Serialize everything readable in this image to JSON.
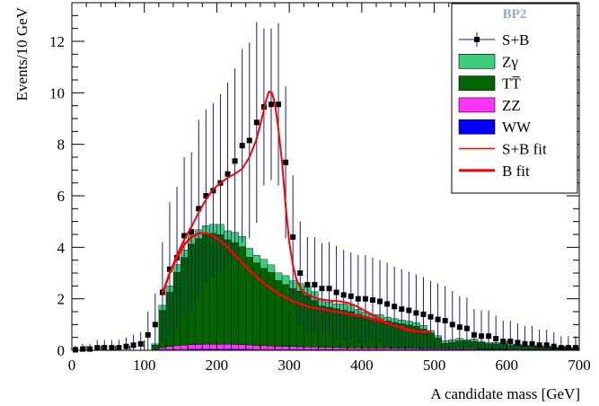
{
  "chart_data": {
    "type": "histogram",
    "title": "",
    "xlabel": "A candidate mass [GeV]",
    "ylabel": "Events/10 GeV",
    "xlim": [
      0,
      700
    ],
    "ylim": [
      0,
      13.5
    ],
    "x_ticks": [
      0,
      100,
      200,
      300,
      400,
      500,
      600,
      700
    ],
    "y_ticks": [
      0,
      2,
      4,
      6,
      8,
      10,
      12
    ],
    "bin_width": 10,
    "bin_edges_start": 0,
    "legend": {
      "title": "BP2",
      "title_color": "#8ea9db",
      "position": "top-right",
      "entries": [
        {
          "label": "S+B",
          "style": "marker-errorbar",
          "color": "#000000",
          "line_color": "#1c1c8c"
        },
        {
          "label": "Zγ",
          "style": "fill",
          "color": "#3ccc7c"
        },
        {
          "label": "TT̅",
          "style": "fill",
          "color": "#006400"
        },
        {
          "label": "ZZ",
          "style": "fill",
          "color": "#ff33ff"
        },
        {
          "label": "WW",
          "style": "fill",
          "color": "#0000ff"
        },
        {
          "label": "S+B fit",
          "style": "line",
          "color": "#ff0000"
        },
        {
          "label": "B fit",
          "style": "line-thick",
          "color": "#ff0000"
        }
      ]
    },
    "series": [
      {
        "name": "WW",
        "color": "#0000ff",
        "values": [
          0,
          0,
          0,
          0,
          0,
          0,
          0,
          0,
          0,
          0,
          0,
          0,
          0.02,
          0.03,
          0.03,
          0.03,
          0.04,
          0.04,
          0.04,
          0.04,
          0.04,
          0.04,
          0.04,
          0.04,
          0.04,
          0.03,
          0.03,
          0.03,
          0.03,
          0.03,
          0.03,
          0.03,
          0.03,
          0.03,
          0.03,
          0.03,
          0.02,
          0.02,
          0.02,
          0.02,
          0.02,
          0.02,
          0.02,
          0.02,
          0.02,
          0.02,
          0.02,
          0.02,
          0.02,
          0.02,
          0.02,
          0.02,
          0.02,
          0.02,
          0.02,
          0.02,
          0.02,
          0.02,
          0.02,
          0.02,
          0.01,
          0.01,
          0.01,
          0.01,
          0.01,
          0.01,
          0.01,
          0.01,
          0.01,
          0.01
        ]
      },
      {
        "name": "ZZ",
        "color": "#ff33ff",
        "values": [
          0,
          0,
          0,
          0,
          0,
          0,
          0,
          0,
          0,
          0,
          0,
          0,
          0.08,
          0.12,
          0.15,
          0.17,
          0.18,
          0.19,
          0.2,
          0.2,
          0.2,
          0.2,
          0.19,
          0.18,
          0.17,
          0.16,
          0.15,
          0.14,
          0.13,
          0.12,
          0.12,
          0.11,
          0.1,
          0.1,
          0.09,
          0.09,
          0.09,
          0.08,
          0.08,
          0.08,
          0.07,
          0.07,
          0.07,
          0.07,
          0.06,
          0.06,
          0.06,
          0.06,
          0.05,
          0.05,
          0.05,
          0.05,
          0.04,
          0.04,
          0.04,
          0.04,
          0.03,
          0.03,
          0.03,
          0.03,
          0.03,
          0.03,
          0.02,
          0.02,
          0.02,
          0.02,
          0.02,
          0.02,
          0.02,
          0.02
        ]
      },
      {
        "name": "TT̅",
        "color": "#006400",
        "values": [
          0,
          0,
          0,
          0,
          0,
          0,
          0,
          0,
          0,
          0,
          0,
          0.2,
          1.45,
          2.1,
          2.85,
          3.4,
          3.9,
          4.1,
          4.25,
          4.3,
          4.25,
          4.05,
          3.95,
          3.8,
          3.4,
          3.2,
          3.0,
          2.85,
          2.55,
          2.4,
          2.25,
          2.15,
          2.0,
          1.8,
          1.6,
          1.55,
          1.5,
          1.45,
          1.4,
          1.3,
          1.2,
          1.15,
          1.1,
          1.05,
          1.0,
          0.95,
          0.9,
          0.85,
          0.75,
          0.6,
          0.4,
          0.2,
          0.25,
          0.3,
          0.3,
          0.28,
          0.25,
          0.2,
          0.2,
          0.18,
          0.15,
          0.15,
          0.12,
          0.1,
          0.1,
          0.08,
          0.05,
          0.05,
          0.04,
          0.03
        ]
      },
      {
        "name": "Zγ",
        "color": "#3ccc7c",
        "values": [
          0,
          0,
          0,
          0,
          0,
          0,
          0,
          0,
          0,
          0,
          0,
          0.05,
          0.2,
          0.25,
          0.3,
          0.3,
          0.35,
          0.35,
          0.35,
          0.35,
          0.4,
          0.35,
          0.4,
          0.4,
          0.35,
          0.3,
          0.35,
          0.3,
          0.3,
          0.35,
          0.3,
          0.3,
          0.35,
          0.35,
          0.25,
          0.2,
          0.2,
          0.25,
          0.25,
          0.2,
          0.2,
          0.15,
          0.2,
          0.15,
          0.15,
          0.15,
          0.15,
          0.15,
          0.15,
          0.1,
          0.1,
          0.1,
          0.1,
          0.1,
          0.05,
          0.1,
          0.05,
          0.05,
          0.05,
          0.05,
          0.05,
          0.05,
          0.05,
          0.05,
          0.05,
          0.05,
          0.05,
          0.05,
          0.05,
          0.05
        ]
      },
      {
        "name": "S+B",
        "type": "points",
        "x": [
          5,
          15,
          25,
          35,
          45,
          55,
          65,
          75,
          85,
          95,
          105,
          115,
          125,
          135,
          145,
          155,
          165,
          175,
          185,
          195,
          205,
          215,
          225,
          235,
          245,
          255,
          265,
          275,
          285,
          295,
          305,
          315,
          325,
          335,
          345,
          355,
          365,
          375,
          385,
          395,
          405,
          415,
          425,
          435,
          445,
          455,
          465,
          475,
          485,
          495,
          505,
          515,
          525,
          535,
          545,
          555,
          565,
          575,
          585,
          595,
          605,
          615,
          625,
          635,
          645,
          655,
          665,
          675,
          685,
          695
        ],
        "values": [
          0.02,
          0.05,
          0.05,
          0.1,
          0.1,
          0.1,
          0.1,
          0.15,
          0.2,
          0.25,
          0.6,
          1.0,
          2.25,
          3.15,
          3.6,
          4.45,
          4.6,
          5.5,
          6.0,
          6.2,
          6.5,
          6.85,
          7.35,
          7.95,
          8.15,
          8.85,
          9.45,
          9.55,
          9.55,
          7.3,
          4.4,
          3.0,
          2.55,
          2.55,
          2.4,
          2.4,
          2.25,
          2.15,
          2.1,
          2.0,
          2.0,
          1.95,
          1.9,
          1.8,
          1.7,
          1.6,
          1.55,
          1.45,
          1.4,
          1.3,
          1.2,
          1.15,
          1.0,
          0.9,
          0.85,
          0.6,
          0.55,
          0.55,
          0.45,
          0.35,
          0.35,
          0.3,
          0.25,
          0.25,
          0.2,
          0.2,
          0.15,
          0.1,
          0.1,
          0.1
        ]
      },
      {
        "name": "S+B fit",
        "type": "line",
        "color": "#ff0000",
        "x": [
          125,
          135,
          145,
          155,
          165,
          175,
          185,
          195,
          205,
          215,
          225,
          235,
          245,
          255,
          262,
          268,
          272,
          276,
          280,
          285,
          290,
          295,
          300,
          305,
          310,
          315,
          320,
          330,
          340,
          350,
          360,
          370,
          380,
          390,
          400,
          410,
          420,
          430,
          440,
          450,
          460,
          470,
          480,
          490
        ],
        "values": [
          2.2,
          3.0,
          3.7,
          4.3,
          4.8,
          5.35,
          5.85,
          6.25,
          6.5,
          6.7,
          6.85,
          7.05,
          7.5,
          8.2,
          9.0,
          9.7,
          10.05,
          10.0,
          9.6,
          8.6,
          7.3,
          5.6,
          4.2,
          3.3,
          2.75,
          2.45,
          2.25,
          2.1,
          2.0,
          1.95,
          1.92,
          1.9,
          1.85,
          1.75,
          1.6,
          1.45,
          1.3,
          1.15,
          1.0,
          0.9,
          0.8,
          0.75,
          0.72,
          0.7
        ]
      },
      {
        "name": "B fit",
        "type": "line",
        "color": "#ff0000",
        "x": [
          125,
          135,
          145,
          155,
          165,
          175,
          185,
          195,
          205,
          215,
          225,
          235,
          245,
          255,
          265,
          275,
          285,
          295,
          305,
          315,
          325,
          335,
          345,
          355,
          365,
          375,
          385,
          395,
          405,
          415,
          425,
          435,
          445,
          455,
          465,
          475,
          485,
          495
        ],
        "values": [
          2.2,
          3.0,
          3.6,
          4.1,
          4.4,
          4.55,
          4.55,
          4.45,
          4.25,
          4.0,
          3.7,
          3.4,
          3.1,
          2.85,
          2.6,
          2.4,
          2.2,
          2.05,
          1.9,
          1.8,
          1.7,
          1.65,
          1.6,
          1.55,
          1.5,
          1.45,
          1.4,
          1.35,
          1.3,
          1.2,
          1.15,
          1.05,
          0.95,
          0.9,
          0.8,
          0.75,
          0.72,
          0.7
        ]
      }
    ],
    "errors_above": [
      0.15,
      0.2,
      0.2,
      0.3,
      0.3,
      0.3,
      0.3,
      0.35,
      0.4,
      0.45,
      0.9,
      1.2,
      1.95,
      2.6,
      2.75,
      3.05,
      3.1,
      3.45,
      3.35,
      3.4,
      3.45,
      3.55,
      3.6,
      3.75,
      3.8,
      3.9,
      3.05,
      2.95,
      3.15,
      2.95,
      2.4,
      2.0,
      1.85,
      1.85,
      1.75,
      1.8,
      1.8,
      1.75,
      1.7,
      1.7,
      1.7,
      1.65,
      1.6,
      1.6,
      1.55,
      1.55,
      1.5,
      1.5,
      1.45,
      1.4,
      1.4,
      1.35,
      1.3,
      1.2,
      1.2,
      1.0,
      1.0,
      1.0,
      0.9,
      0.8,
      0.8,
      0.75,
      0.7,
      0.7,
      0.6,
      0.6,
      0.55,
      0.45,
      0.45,
      0.45
    ]
  }
}
